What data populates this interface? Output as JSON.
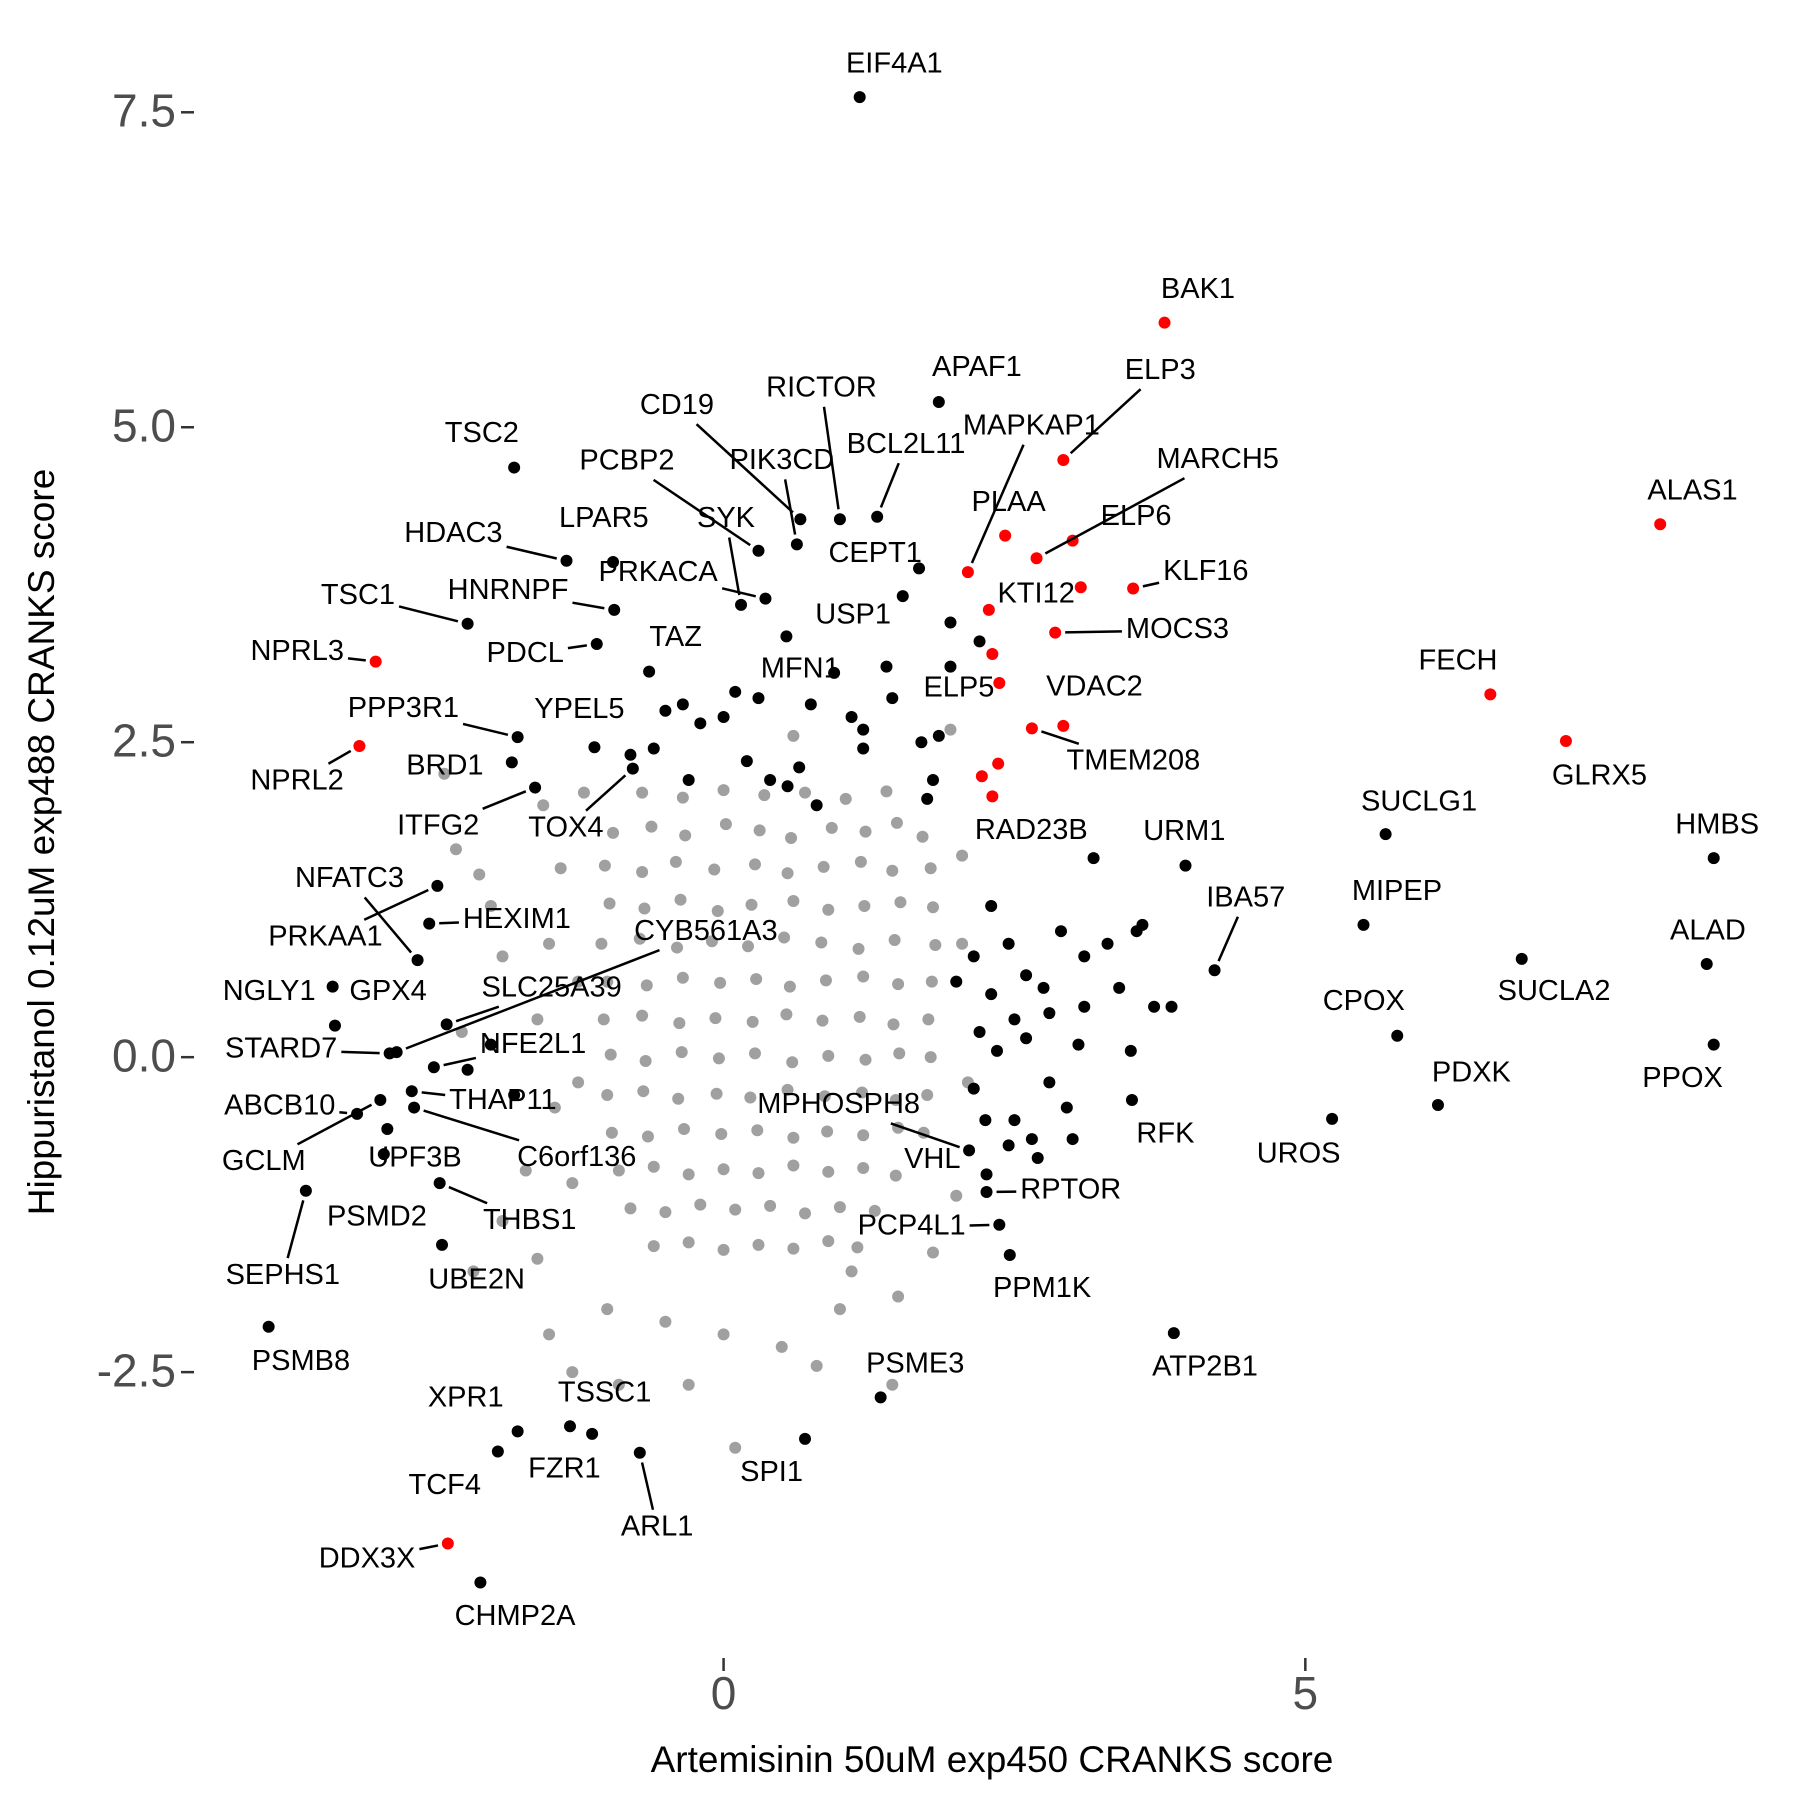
{
  "chart_data": {
    "type": "scatter",
    "x_label": "Artemisinin 50uM exp450 CRANKS score",
    "y_label": "Hippuristanol 0.12uM exp488 CRANKS score",
    "xlim": [
      -4.5,
      9.2
    ],
    "ylim": [
      -4.65,
      8.05
    ],
    "xticks": [
      0,
      5
    ],
    "yticks": [
      {
        "value": -2.5,
        "label": "-2.5"
      },
      {
        "value": 0,
        "label": "0.0"
      },
      {
        "value": 2.5,
        "label": "2.5"
      },
      {
        "value": 5,
        "label": "5.0"
      },
      {
        "value": 7.5,
        "label": "7.5"
      }
    ],
    "series": [
      {
        "color": "#a0a0a0",
        "x": [
          -0.95,
          -0.62,
          -0.33,
          0.02,
          0.31,
          0.58,
          0.93,
          1.22,
          1.49,
          1.71,
          -1.02,
          -0.7,
          -0.41,
          -0.08,
          0.27,
          0.55,
          0.86,
          1.18,
          1.45,
          1.78,
          -0.98,
          -0.68,
          -0.37,
          -0.05,
          0.24,
          0.6,
          0.9,
          1.21,
          1.52,
          1.8,
          -1.05,
          -0.72,
          -0.4,
          -0.1,
          0.21,
          0.52,
          0.84,
          1.16,
          1.47,
          1.82,
          -1.0,
          -0.66,
          -0.35,
          -0.03,
          0.28,
          0.57,
          0.88,
          1.2,
          1.5,
          1.79,
          -1.03,
          -0.7,
          -0.38,
          -0.07,
          0.25,
          0.54,
          0.85,
          1.17,
          1.46,
          1.76,
          -0.97,
          -0.67,
          -0.36,
          -0.04,
          0.27,
          0.59,
          0.9,
          1.22,
          1.51,
          1.78,
          -1.0,
          -0.69,
          -0.39,
          -0.06,
          0.23,
          0.55,
          0.87,
          1.19,
          1.48,
          1.75,
          -0.96,
          -0.65,
          -0.34,
          -0.02,
          0.29,
          0.6,
          0.89,
          1.2,
          1.5,
          1.72,
          -0.9,
          -0.6,
          -0.3,
          0.0,
          0.3,
          0.6,
          0.9,
          1.2,
          1.48,
          -0.8,
          -0.5,
          -0.2,
          0.1,
          0.4,
          0.7,
          1.0,
          1.3,
          -0.6,
          -0.3,
          0.0,
          0.3,
          0.6,
          0.9,
          1.15,
          -0.7,
          -0.35,
          0.0,
          0.35,
          0.7,
          1.05,
          1.4,
          -1.4,
          -1.5,
          -1.6,
          -1.45,
          -1.3,
          -1.9,
          -2.0,
          -2.1,
          -2.3,
          -1.7,
          -1.9,
          -1.6,
          -2.15,
          -1.5,
          -1.0,
          -0.5,
          0.0,
          0.5,
          1.0,
          1.5,
          1.8,
          2.0,
          1.1,
          -0.3,
          0.1,
          0.8,
          2.05,
          2.1,
          2.05,
          1.95,
          -1.2,
          -1.55,
          -2.4,
          -2.25,
          0.6,
          -1.25,
          -1.25,
          1.45,
          -0.9,
          -1.3
        ],
        "values": [
          1.78,
          1.83,
          1.76,
          1.85,
          1.8,
          1.74,
          1.82,
          1.79,
          1.86,
          1.75,
          1.52,
          1.47,
          1.55,
          1.49,
          1.53,
          1.46,
          1.51,
          1.55,
          1.48,
          1.5,
          1.22,
          1.18,
          1.25,
          1.16,
          1.21,
          1.24,
          1.17,
          1.2,
          1.23,
          1.19,
          0.9,
          0.94,
          0.87,
          0.92,
          0.88,
          0.95,
          0.91,
          0.86,
          0.93,
          0.89,
          0.6,
          0.57,
          0.63,
          0.59,
          0.62,
          0.56,
          0.61,
          0.64,
          0.58,
          0.6,
          0.3,
          0.33,
          0.27,
          0.31,
          0.28,
          0.34,
          0.29,
          0.32,
          0.26,
          0.3,
          0.02,
          -0.03,
          0.04,
          -0.01,
          0.03,
          -0.04,
          0.01,
          -0.02,
          0.03,
          0,
          -0.3,
          -0.27,
          -0.33,
          -0.29,
          -0.32,
          -0.26,
          -0.31,
          -0.28,
          -0.34,
          -0.3,
          -0.6,
          -0.63,
          -0.57,
          -0.61,
          -0.58,
          -0.64,
          -0.59,
          -0.62,
          -0.56,
          -0.6,
          -0.9,
          -0.87,
          -0.93,
          -0.89,
          -0.92,
          -0.86,
          -0.91,
          -0.88,
          -0.94,
          -1.2,
          -1.23,
          -1.17,
          -1.21,
          -1.18,
          -1.24,
          -1.19,
          -1.22,
          -1.5,
          -1.47,
          -1.53,
          -1.49,
          -1.52,
          -1.46,
          -1.51,
          2.1,
          2.06,
          2.12,
          2.08,
          2.1,
          2.05,
          2.11,
          1.5,
          0.9,
          0.3,
          -0.4,
          -1.0,
          0.8,
          1.2,
          1.45,
          1.65,
          -0.9,
          -1.3,
          -1.6,
          -1.7,
          -2.2,
          -2.0,
          -2.1,
          -2.2,
          -2.3,
          -2.0,
          -1.9,
          -1.55,
          -1.1,
          -1.7,
          -2.6,
          -3.1,
          -2.45,
          0.9,
          -0.2,
          1.6,
          2.6,
          2.1,
          2.0,
          2.25,
          0.2,
          2.55,
          0.6,
          -0.2,
          -2.6,
          -2.6,
          -2.5
        ]
      },
      {
        "color": "#000000",
        "x": [
          0.0,
          0.3,
          -0.5,
          -0.35,
          0.75,
          1.1,
          1.45,
          1.7,
          1.85,
          -0.8,
          -0.6,
          0.4,
          0.55,
          0.8,
          1.2,
          1.8,
          1.75,
          0.1,
          0.95,
          1.4,
          1.95,
          2.2,
          1.95,
          -0.3,
          0.65,
          1.2,
          0.2,
          -0.2,
          2.0,
          2.15,
          2.3,
          2.45,
          2.5,
          2.6,
          2.75,
          2.2,
          2.35,
          3.1,
          3.3,
          3.4,
          3.1,
          3.6,
          3.55,
          3.7,
          3.85,
          3.05,
          3.5,
          2.15,
          2.25,
          2.5,
          2.45,
          2.65,
          2.8,
          2.95,
          3.0,
          2.7,
          2.9,
          2.3,
          2.8,
          2.6,
          -2.0,
          -1.8,
          -2.2
        ],
        "values": [
          2.7,
          2.85,
          2.75,
          2.8,
          2.8,
          2.7,
          2.85,
          2.5,
          2.55,
          2.4,
          2.45,
          2.2,
          2.15,
          2.0,
          2.45,
          2.2,
          2.05,
          2.9,
          3.05,
          3.1,
          3.45,
          3.3,
          3.1,
          2.2,
          2.3,
          2.6,
          2.35,
          2.65,
          0.6,
          0.8,
          0.5,
          0.9,
          0.3,
          0.65,
          0.55,
          0.2,
          0.05,
          0.8,
          0.9,
          0.55,
          0.4,
          1.05,
          1.0,
          0.4,
          0.4,
          0.1,
          0.05,
          -0.25,
          -0.5,
          -0.5,
          -0.7,
          -0.65,
          -0.2,
          -0.4,
          -0.65,
          -0.8,
          1.0,
          1.2,
          0.35,
          0.15,
          0.1,
          -0.3,
          -0.1
        ]
      },
      {
        "color": "#000000",
        "x": [
          1.17,
          1.85,
          -1.8,
          1.0,
          0.66,
          0.63,
          1.32,
          0.3,
          0.15,
          0.36,
          -1.35,
          -0.95,
          -0.94,
          -1.09,
          1.68,
          -2.2,
          1.54,
          -0.64,
          0.54,
          -1.77,
          -1.11,
          -1.82,
          -1.62,
          -0.78,
          -2.63,
          -2.53,
          -2.46,
          -2.81,
          -3.36,
          -3.34,
          -2.38,
          -2.87,
          -2.49,
          -3.15,
          -2.68,
          -2.66,
          -2.95,
          -2.89,
          -2.92,
          -2.44,
          -3.59,
          -2.42,
          -3.91,
          -1.77,
          -1.32,
          -1.94,
          -1.13,
          -0.72,
          0.7,
          1.35,
          -2.09,
          3.87,
          2.46,
          2.37,
          2.26,
          2.26,
          2.11,
          3.51,
          5.23,
          6.14,
          5.79,
          6.86,
          5.5,
          4.22,
          3.97,
          3.18,
          5.69,
          8.51,
          8.45,
          8.51
        ],
        "values": [
          7.62,
          5.2,
          4.68,
          4.27,
          4.27,
          4.07,
          4.29,
          4.02,
          3.59,
          3.64,
          3.94,
          3.93,
          3.55,
          3.28,
          3.88,
          3.44,
          3.66,
          3.06,
          3.34,
          2.54,
          2.46,
          2.34,
          2.14,
          2.29,
          0.77,
          1.06,
          1.36,
          0.04,
          0.56,
          0.25,
          0.26,
          0.03,
          -0.08,
          -0.45,
          -0.27,
          -0.4,
          -0.34,
          -0.57,
          -0.77,
          -1.0,
          -1.06,
          -1.49,
          -2.14,
          -2.97,
          -2.93,
          -3.13,
          -2.99,
          -3.14,
          -3.03,
          -2.7,
          -4.17,
          -2.19,
          -1.57,
          -1.33,
          -1.07,
          -0.93,
          -0.74,
          -0.34,
          -0.49,
          -0.38,
          0.17,
          0.78,
          1.05,
          0.69,
          1.52,
          1.58,
          1.77,
          1.58,
          0.74,
          0.1
        ],
        "labels": [
          "EIF4A1",
          "APAF1",
          "TSC2",
          "RICTOR",
          "CD19",
          "PIK3CD",
          "BCL2L11",
          "PCBP2",
          "SYK",
          "PRKACA",
          "HDAC3",
          "LPAR5",
          "HNRNPF",
          "PDCL",
          "CEPT1",
          "TSC1",
          "USP1",
          "TAZ",
          "MFN1",
          "PPP3R1",
          "YPEL5",
          "BRD1",
          "ITFG2",
          "TOX4",
          "NFATC3",
          "HEXIM1",
          "PRKAA1",
          "CYB561A3",
          "NGLY1",
          "GPX4",
          "SLC25A39",
          "STARD7",
          "NFE2L1",
          "ABCB10",
          "THAP11",
          "C6orf136",
          "GCLM",
          "UPF3B",
          "PSMD2",
          "THBS1",
          "SEPHS1",
          "UBE2N",
          "PSMB8",
          "XPR1",
          "TSSC1",
          "TCF4",
          "FZR1",
          "ARL1",
          "SPI1",
          "PSME3",
          "CHMP2A",
          "ATP2B1",
          "PPM1K",
          "PCP4L1",
          "RPTOR",
          "VHL",
          "MPHOSPH8",
          "RFK",
          "UROS",
          "PDXK",
          "CPOX",
          "SUCLA2",
          "MIPEP",
          "IBA57",
          "URM1",
          "RAD23B",
          "SUCLG1",
          "HMBS",
          "ALAD",
          "PPOX"
        ]
      },
      {
        "color": "#ff0000",
        "x": [
          2.31,
          2.36,
          2.22,
          2.31,
          3.07
        ],
        "values": [
          3.2,
          2.33,
          2.23,
          2.07,
          3.73
        ]
      },
      {
        "color": "#ff0000",
        "x": [
          3.79,
          2.92,
          2.1,
          2.42,
          2.69,
          3.0,
          2.28,
          3.52,
          2.85,
          2.92,
          2.37,
          2.65,
          8.05,
          6.59,
          7.24,
          -2.99,
          -3.13,
          -2.37
        ],
        "values": [
          5.83,
          4.74,
          3.85,
          4.14,
          3.96,
          4.1,
          3.55,
          3.72,
          3.37,
          2.63,
          2.97,
          2.61,
          4.23,
          2.88,
          2.51,
          3.14,
          2.47,
          -3.86
        ],
        "labels": [
          "BAK1",
          "ELP3",
          "MAPKAP1",
          "PLAA",
          "MARCH5",
          "ELP6",
          "KTI12",
          "KLF16",
          "MOCS3",
          "VDAC2",
          "ELP5",
          "TMEM208",
          "ALAS1",
          "FECH",
          "GLRX5",
          "NPRL3",
          "NPRL2",
          "DDX3X"
        ]
      }
    ]
  }
}
